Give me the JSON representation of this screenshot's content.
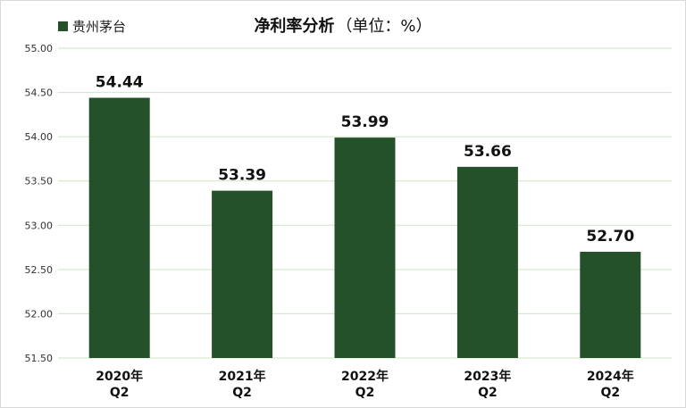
{
  "chart_data": {
    "type": "bar",
    "title": "净利率分析",
    "subtitle": "（单位：%）",
    "legend": {
      "label": "贵州茅台",
      "position": "top-left"
    },
    "categories": [
      {
        "line1": "2020年",
        "line2": "Q2"
      },
      {
        "line1": "2021年",
        "line2": "Q2"
      },
      {
        "line1": "2022年",
        "line2": "Q2"
      },
      {
        "line1": "2023年",
        "line2": "Q2"
      },
      {
        "line1": "2024年",
        "line2": "Q2"
      }
    ],
    "series": [
      {
        "name": "贵州茅台",
        "values": [
          54.44,
          53.39,
          53.99,
          53.66,
          52.7
        ],
        "color": "#24502a"
      }
    ],
    "data_labels": [
      "54.44",
      "53.39",
      "53.99",
      "53.66",
      "52.70"
    ],
    "yticks": [
      "55.00",
      "54.50",
      "54.00",
      "53.50",
      "53.00",
      "52.50",
      "52.00",
      "51.50"
    ],
    "ylim": [
      51.5,
      55.0
    ],
    "grid": true,
    "grid_color": "#cfe3c4"
  }
}
